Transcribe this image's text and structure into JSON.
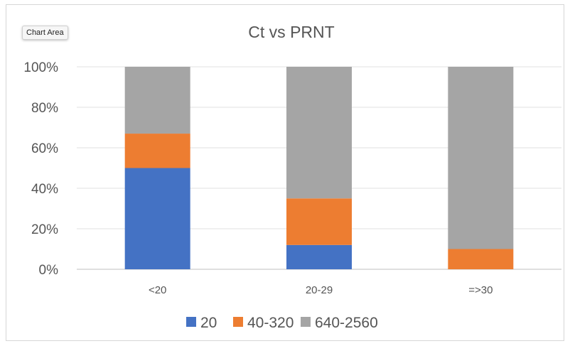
{
  "chart_area_label": "Chart Area",
  "chart_data": {
    "type": "bar",
    "stacked": true,
    "title": "Ct vs PRNT",
    "xlabel": "",
    "ylabel": "",
    "categories": [
      "<20",
      "20-29",
      "=>30"
    ],
    "y_ticks": [
      "0%",
      "20%",
      "40%",
      "60%",
      "80%",
      "100%"
    ],
    "ylim": [
      0,
      100
    ],
    "grid": true,
    "legend_position": "bottom",
    "series": [
      {
        "name": "20",
        "color": "#4472C4",
        "values": [
          50,
          12,
          0
        ]
      },
      {
        "name": "40-320",
        "color": "#ED7D31",
        "values": [
          17,
          23,
          10
        ]
      },
      {
        "name": "640-2560",
        "color": "#A5A5A5",
        "values": [
          33,
          65,
          90
        ]
      }
    ]
  }
}
